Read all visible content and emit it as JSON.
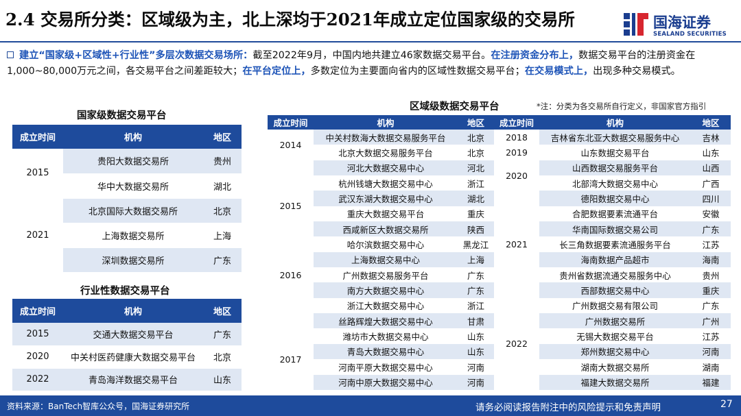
{
  "header": {
    "title": "2.4 交易所分类：区域级为主，北上深均于2021年成立定位国家级的交易所",
    "logo_cn": "国海证券",
    "logo_en": "SEALAND SECURITIES",
    "accent": "#1e4b9c"
  },
  "intro": {
    "lead": "建立“国家级+区域性+行业性”多层次数据交易场所：",
    "text1": "截至2022年9月，中国内地共建立46家数据交易平台。",
    "hl2": "在注册资金分布上，",
    "text2": "数据交易平台的注册资金在1,000~80,000万元之间，各交易平台之间差距较大；",
    "hl3": "在平台定位上，",
    "text3": "多数定位为主要面向省内的区域性数据交易平台；",
    "hl4": "在交易模式上，",
    "text4": "出现多种交易模式。"
  },
  "national": {
    "caption": "国家级数据交易平台",
    "headers": [
      "成立时间",
      "机构",
      "地区"
    ],
    "groups": [
      {
        "year": "2015",
        "rows": [
          [
            "贵阳大数据交易所",
            "贵州"
          ],
          [
            "华中大数据交易所",
            "湖北"
          ]
        ]
      },
      {
        "year": "2021",
        "rows": [
          [
            "北京国际大数据交易所",
            "北京"
          ],
          [
            "上海数据交易所",
            "上海"
          ],
          [
            "深圳数据交易所",
            "广东"
          ]
        ]
      }
    ]
  },
  "industry": {
    "caption": "行业性数据交易平台",
    "headers": [
      "成立时间",
      "机构",
      "地区"
    ],
    "rows": [
      [
        "2015",
        "交通大数据交易平台",
        "广东"
      ],
      [
        "2020",
        "中关村医药健康大数据交易平台",
        "北京"
      ],
      [
        "2022",
        "青岛海洋数据交易平台",
        "山东"
      ]
    ]
  },
  "regional": {
    "caption": "区域级数据交易平台",
    "note": "*注：分类为各交易所自行定义，非国家官方指引",
    "headers": [
      "成立时间",
      "机构",
      "地区",
      "成立时间",
      "机构",
      "地区"
    ],
    "left": [
      {
        "year": "2014",
        "rows": [
          [
            "中关村数海大数据交易服务平台",
            "北京"
          ],
          [
            "北京大数据交易服务平台",
            "北京"
          ]
        ]
      },
      {
        "year": "2015",
        "rows": [
          [
            "河北大数据交易中心",
            "河北"
          ],
          [
            "杭州钱塘大数据交易中心",
            "浙江"
          ],
          [
            "武汉东湖大数据交易中心",
            "湖北"
          ],
          [
            "重庆大数据交易平台",
            "重庆"
          ],
          [
            "西咸新区大数据交易所",
            "陕西"
          ],
          [
            "哈尔滨数据交易中心",
            "黑龙江"
          ]
        ]
      },
      {
        "year": "2016",
        "rows": [
          [
            "上海数据交易中心",
            "上海"
          ],
          [
            "广州数据交易服务平台",
            "广东"
          ],
          [
            "南方大数据交易中心",
            "广东"
          ]
        ]
      },
      {
        "year": "",
        "rows": [
          [
            "浙江大数据交易中心",
            "浙江"
          ],
          [
            "丝路辉煌大数据交易中心",
            "甘肃"
          ]
        ]
      },
      {
        "year": "2017",
        "rows": [
          [
            "潍坊市大数据交易中心",
            "山东"
          ],
          [
            "青岛大数据交易中心",
            "山东"
          ],
          [
            "河南平原大数据交易中心",
            "河南"
          ],
          [
            "河南中原大数据交易中心",
            "河南"
          ]
        ]
      }
    ],
    "right": [
      {
        "year": "2018",
        "rows": [
          [
            "吉林省东北亚大数据交易服务中心",
            "吉林"
          ]
        ]
      },
      {
        "year": "2019",
        "rows": [
          [
            "山东数据交易平台",
            "山东"
          ]
        ]
      },
      {
        "year": "2020",
        "rows": [
          [
            "山西数据交易服务平台",
            "山西"
          ],
          [
            "北部湾大数据交易中心",
            "广西"
          ]
        ]
      },
      {
        "year": "2021",
        "rows": [
          [
            "德阳数据交易中心",
            "四川"
          ],
          [
            "合肥数据要素流通平台",
            "安徽"
          ],
          [
            "华南国际数据交易公司",
            "广东"
          ],
          [
            "长三角数据要素流通服务平台",
            "江苏"
          ],
          [
            "海南数据产品超市",
            "海南"
          ],
          [
            "贵州省数据流通交易服务中心",
            "贵州"
          ],
          [
            "西部数据交易中心",
            "重庆"
          ]
        ]
      },
      {
        "year": "2022",
        "rows": [
          [
            "广州数据交易有限公司",
            "广东"
          ],
          [
            "广州数据交易所",
            "广州"
          ],
          [
            "无锡大数据交易平台",
            "江苏"
          ],
          [
            "郑州数据交易中心",
            "河南"
          ],
          [
            "湖南大数据交易所",
            "湖南"
          ],
          [
            "福建大数据交易所",
            "福建"
          ]
        ]
      }
    ]
  },
  "footer": {
    "source": "资料来源：BanTech智库公众号，国海证券研究所",
    "disclaimer": "请务必阅读报告附注中的风险提示和免责声明",
    "page": "27"
  }
}
